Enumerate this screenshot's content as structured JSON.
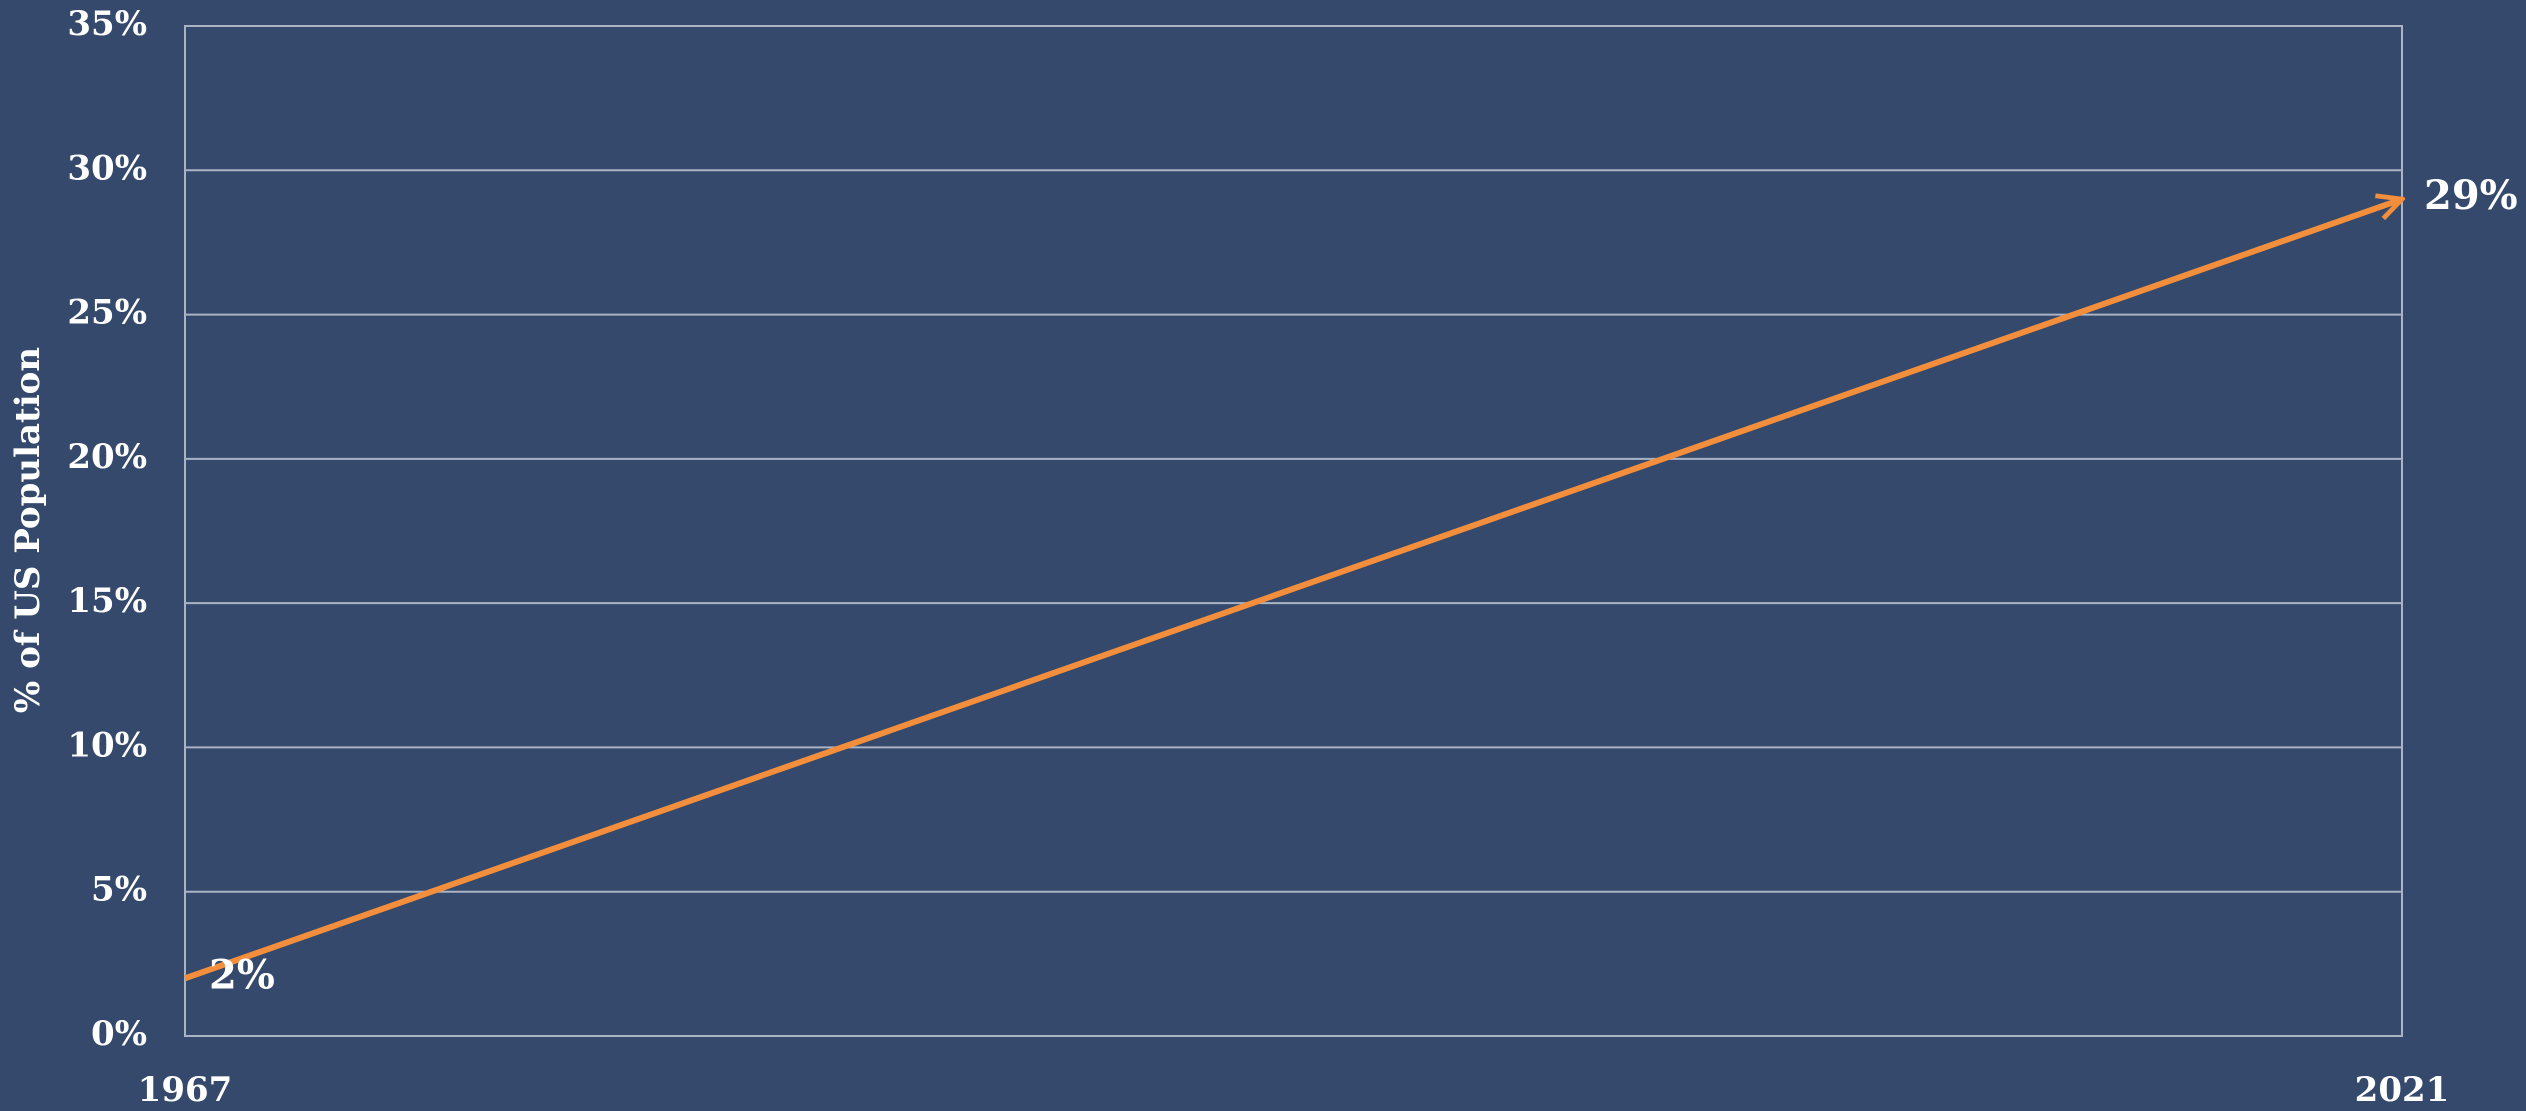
{
  "chart_data": {
    "type": "line",
    "y_label": "% of US Population",
    "x": [
      1967,
      2021
    ],
    "values": [
      2,
      29
    ],
    "value_labels": [
      "2%",
      "29%"
    ],
    "color": "#f28e3c",
    "xlim": [
      1967,
      2021
    ],
    "xticks": [
      1967,
      2021
    ],
    "ylim": [
      0,
      35
    ],
    "yticks": [
      {
        "value": 0,
        "label": "0%"
      },
      {
        "value": 5,
        "label": "5%"
      },
      {
        "value": 10,
        "label": "10%"
      },
      {
        "value": 15,
        "label": "15%"
      },
      {
        "value": 20,
        "label": "20%"
      },
      {
        "value": 25,
        "label": "25%"
      },
      {
        "value": 30,
        "label": "30%"
      },
      {
        "value": 35,
        "label": "35%"
      }
    ],
    "grid": true
  }
}
